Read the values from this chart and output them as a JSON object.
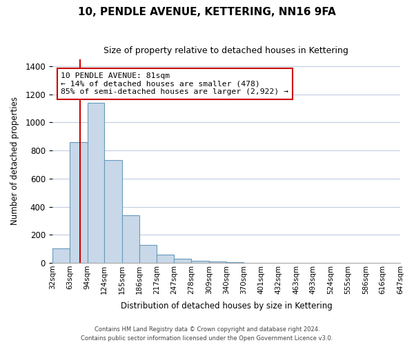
{
  "title": "10, PENDLE AVENUE, KETTERING, NN16 9FA",
  "subtitle": "Size of property relative to detached houses in Kettering",
  "xlabel": "Distribution of detached houses by size in Kettering",
  "ylabel": "Number of detached properties",
  "bar_values": [
    105,
    860,
    1140,
    730,
    340,
    130,
    60,
    30,
    15,
    10,
    5,
    0,
    0,
    0,
    0,
    0,
    0,
    0,
    0,
    0
  ],
  "bin_labels": [
    "32sqm",
    "63sqm",
    "94sqm",
    "124sqm",
    "155sqm",
    "186sqm",
    "217sqm",
    "247sqm",
    "278sqm",
    "309sqm",
    "340sqm",
    "370sqm",
    "401sqm",
    "432sqm",
    "463sqm",
    "493sqm",
    "524sqm",
    "555sqm",
    "586sqm",
    "616sqm",
    "647sqm"
  ],
  "bar_color": "#c8d8e8",
  "bar_edge_color": "#6699bb",
  "vline_x": 81,
  "vline_color": "#cc0000",
  "ylim": [
    0,
    1450
  ],
  "yticks": [
    0,
    200,
    400,
    600,
    800,
    1000,
    1200,
    1400
  ],
  "annotation_title": "10 PENDLE AVENUE: 81sqm",
  "annotation_line1": "← 14% of detached houses are smaller (478)",
  "annotation_line2": "85% of semi-detached houses are larger (2,922) →",
  "annotation_box_color": "#ffffff",
  "annotation_box_edge": "#cc0000",
  "footer1": "Contains HM Land Registry data © Crown copyright and database right 2024.",
  "footer2": "Contains public sector information licensed under the Open Government Licence v3.0.",
  "background_color": "#ffffff",
  "grid_color": "#c0cce0",
  "bin_edges": [
    32,
    63,
    94,
    124,
    155,
    186,
    217,
    247,
    278,
    309,
    340,
    370,
    401,
    432,
    463,
    493,
    524,
    555,
    586,
    616,
    647
  ]
}
